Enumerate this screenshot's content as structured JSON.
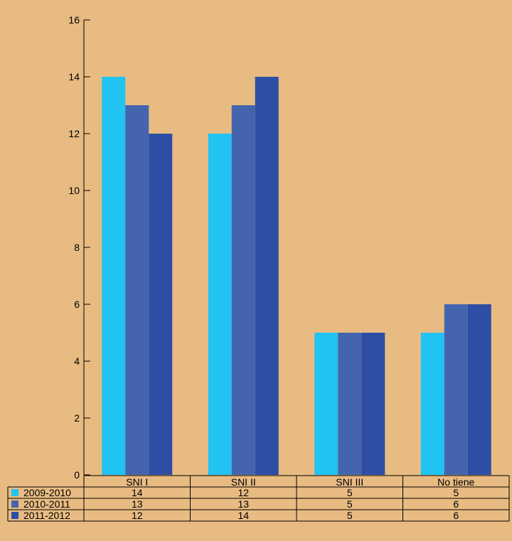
{
  "chart_data": {
    "type": "bar",
    "categories": [
      "SNI I",
      "SNI II",
      "SNI III",
      "No tiene"
    ],
    "series": [
      {
        "name": "2009-2010",
        "values": [
          14,
          12,
          5,
          5
        ],
        "color": "#21c3f3"
      },
      {
        "name": "2010-2011",
        "values": [
          13,
          13,
          5,
          6
        ],
        "color": "#4465ae"
      },
      {
        "name": "2011-2012",
        "values": [
          12,
          14,
          5,
          6
        ],
        "color": "#2d4ea4"
      }
    ],
    "ylim": [
      0,
      16
    ],
    "yticks": [
      0,
      2,
      4,
      6,
      8,
      10,
      12,
      14,
      16
    ],
    "legend": "data-table-below",
    "grid": false,
    "background": "#e8bb82"
  }
}
